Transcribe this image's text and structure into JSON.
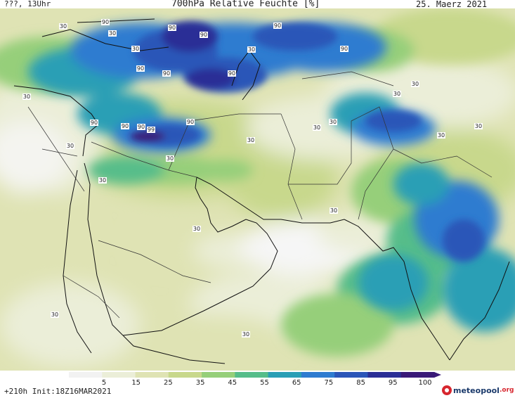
{
  "header": {
    "left": "???, 13Uhr",
    "title": "700hPa Relative Feuchte [%]",
    "date": "25. Maerz 2021"
  },
  "footer": {
    "run_info": "+210h Init:18Z16MAR2021",
    "logo_name": "meteopool",
    "logo_tld": ".org"
  },
  "legend": {
    "ticks": [
      "5",
      "15",
      "25",
      "35",
      "45",
      "55",
      "65",
      "75",
      "85",
      "95",
      "100"
    ],
    "colors": [
      "#f2f2f2",
      "#ebeed8",
      "#dfe3b4",
      "#c8d88c",
      "#96cf7a",
      "#56bd8a",
      "#2a9fb5",
      "#2f7cd0",
      "#2c56b8",
      "#2b2f96",
      "#3a1a78"
    ]
  },
  "map": {
    "contour_labels": [
      {
        "text": "90"
      },
      {
        "text": "90"
      },
      {
        "text": "90"
      },
      {
        "text": "90"
      },
      {
        "text": "90"
      },
      {
        "text": "90"
      },
      {
        "text": "90"
      },
      {
        "text": "90"
      },
      {
        "text": "90"
      },
      {
        "text": "90"
      },
      {
        "text": "90"
      },
      {
        "text": "90"
      },
      {
        "text": "99"
      },
      {
        "text": "30"
      },
      {
        "text": "30"
      },
      {
        "text": "30"
      },
      {
        "text": "30"
      },
      {
        "text": "30"
      },
      {
        "text": "30"
      },
      {
        "text": "30"
      },
      {
        "text": "30"
      },
      {
        "text": "30"
      },
      {
        "text": "30"
      },
      {
        "text": "30"
      },
      {
        "text": "30"
      },
      {
        "text": "30"
      },
      {
        "text": "30"
      },
      {
        "text": "30"
      },
      {
        "text": "30"
      },
      {
        "text": "30"
      },
      {
        "text": "30"
      },
      {
        "text": "30"
      }
    ]
  }
}
